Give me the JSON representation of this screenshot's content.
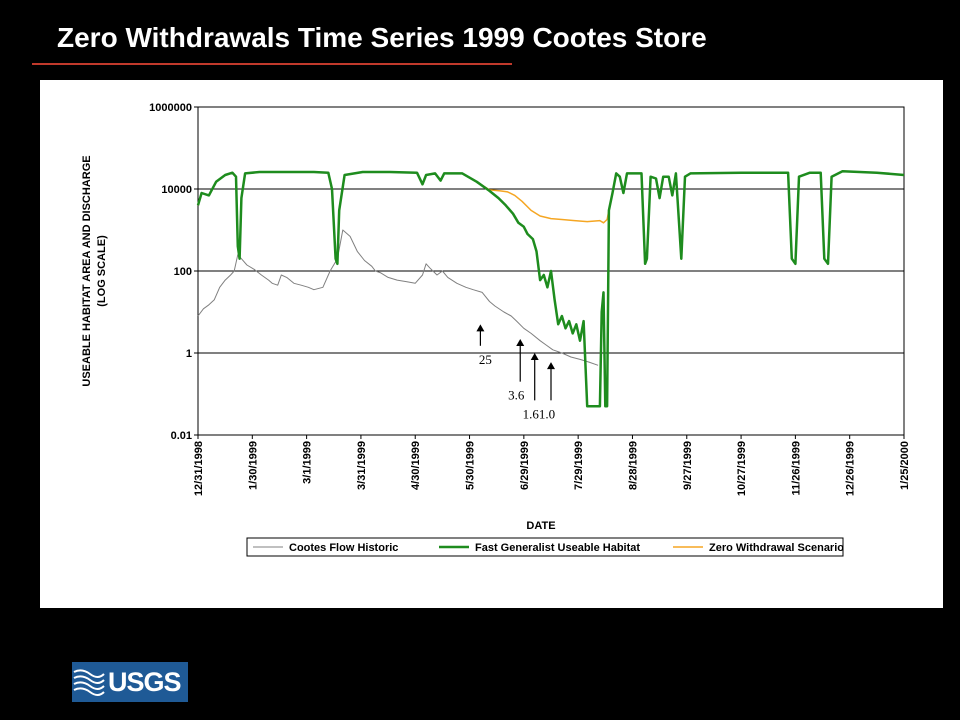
{
  "slide": {
    "title": "Zero Withdrawals Time Series 1999 Cootes Store",
    "logo_text": "USGS"
  },
  "colors": {
    "background": "#000000",
    "title": "#ffffff",
    "rule": "#c0392b",
    "historic": "#808080",
    "habitat": "#1e8c1e",
    "zero_withdrawal": "#f5a623",
    "logo_bg": "#1f5a96"
  },
  "chart_data": {
    "type": "line",
    "y_scale": "log",
    "ylabel_lines": [
      "USEABLE HABITAT AREA AND DISCHARGE",
      "(LOG SCALE)"
    ],
    "xlabel": "DATE",
    "ylim": [
      0.01,
      1000000
    ],
    "xlim": [
      "1998-12-31",
      "2000-01-25"
    ],
    "grid": "horizontal",
    "legend_position": "bottom",
    "y_ticks": [
      {
        "v": 0.01,
        "label": "0.01"
      },
      {
        "v": 1,
        "label": "1"
      },
      {
        "v": 100,
        "label": "100"
      },
      {
        "v": 10000,
        "label": "10000"
      },
      {
        "v": 1000000,
        "label": "1000000"
      }
    ],
    "x_ticks": [
      {
        "date": "1998-12-31",
        "label": "12/31/1998"
      },
      {
        "date": "1999-01-30",
        "label": "1/30/1999"
      },
      {
        "date": "1999-03-01",
        "label": "3/1/1999"
      },
      {
        "date": "1999-03-31",
        "label": "3/31/1999"
      },
      {
        "date": "1999-04-30",
        "label": "4/30/1999"
      },
      {
        "date": "1999-05-30",
        "label": "5/30/1999"
      },
      {
        "date": "1999-06-29",
        "label": "6/29/1999"
      },
      {
        "date": "1999-07-29",
        "label": "7/29/1999"
      },
      {
        "date": "1999-08-28",
        "label": "8/28/1999"
      },
      {
        "date": "1999-09-27",
        "label": "9/27/1999"
      },
      {
        "date": "1999-10-27",
        "label": "10/27/1999"
      },
      {
        "date": "1999-11-26",
        "label": "11/26/1999"
      },
      {
        "date": "1999-12-26",
        "label": "12/26/1999"
      },
      {
        "date": "2000-01-25",
        "label": "1/25/2000"
      }
    ],
    "series": [
      {
        "name": "Cootes Flow Historic",
        "color": "#808080",
        "width": 1,
        "points": [
          [
            "1998-12-31",
            8
          ],
          [
            "1999-01-03",
            12
          ],
          [
            "1999-01-06",
            15
          ],
          [
            "1999-01-09",
            20
          ],
          [
            "1999-01-12",
            40
          ],
          [
            "1999-01-15",
            60
          ],
          [
            "1999-01-18",
            80
          ],
          [
            "1999-01-20",
            100
          ],
          [
            "1999-01-22",
            250
          ],
          [
            "1999-01-24",
            200
          ],
          [
            "1999-01-27",
            140
          ],
          [
            "1999-01-31",
            110
          ],
          [
            "1999-02-04",
            80
          ],
          [
            "1999-02-08",
            60
          ],
          [
            "1999-02-10",
            50
          ],
          [
            "1999-02-13",
            45
          ],
          [
            "1999-02-15",
            80
          ],
          [
            "1999-02-18",
            70
          ],
          [
            "1999-02-22",
            50
          ],
          [
            "1999-02-26",
            45
          ],
          [
            "1999-03-02",
            40
          ],
          [
            "1999-03-05",
            35
          ],
          [
            "1999-03-10",
            40
          ],
          [
            "1999-03-14",
            100
          ],
          [
            "1999-03-18",
            200
          ],
          [
            "1999-03-21",
            1000
          ],
          [
            "1999-03-25",
            700
          ],
          [
            "1999-03-29",
            300
          ],
          [
            "1999-04-02",
            180
          ],
          [
            "1999-04-06",
            130
          ],
          [
            "1999-04-08",
            100
          ],
          [
            "1999-04-11",
            90
          ],
          [
            "1999-04-15",
            70
          ],
          [
            "1999-04-20",
            60
          ],
          [
            "1999-04-25",
            55
          ],
          [
            "1999-04-30",
            50
          ],
          [
            "1999-05-04",
            80
          ],
          [
            "1999-05-06",
            150
          ],
          [
            "1999-05-08",
            120
          ],
          [
            "1999-05-12",
            80
          ],
          [
            "1999-05-15",
            100
          ],
          [
            "1999-05-18",
            70
          ],
          [
            "1999-05-23",
            50
          ],
          [
            "1999-05-28",
            40
          ],
          [
            "1999-06-01",
            35
          ],
          [
            "1999-06-06",
            30
          ],
          [
            "1999-06-10",
            18
          ],
          [
            "1999-06-13",
            14
          ],
          [
            "1999-06-18",
            10
          ],
          [
            "1999-06-22",
            8
          ],
          [
            "1999-06-25",
            6
          ],
          [
            "1999-06-29",
            4
          ],
          [
            "1999-07-03",
            3
          ],
          [
            "1999-07-08",
            2
          ],
          [
            "1999-07-11",
            1.6
          ],
          [
            "1999-07-15",
            1.2
          ],
          [
            "1999-07-20",
            1
          ],
          [
            "1999-07-25",
            0.8
          ],
          [
            "1999-07-30",
            0.7
          ],
          [
            "1999-08-04",
            0.6
          ],
          [
            "1999-08-09",
            0.5
          ]
        ]
      },
      {
        "name": "Fast Generalist Useable Habitat",
        "color": "#1e8c1e",
        "width": 2.5,
        "points": [
          [
            "1998-12-31",
            4000
          ],
          [
            "1999-01-02",
            8000
          ],
          [
            "1999-01-06",
            7000
          ],
          [
            "1999-01-10",
            15000
          ],
          [
            "1999-01-15",
            22000
          ],
          [
            "1999-01-19",
            25000
          ],
          [
            "1999-01-21",
            20000
          ],
          [
            "1999-01-22",
            400
          ],
          [
            "1999-01-23",
            200
          ],
          [
            "1999-01-24",
            6000
          ],
          [
            "1999-01-26",
            24000
          ],
          [
            "1999-02-03",
            26000
          ],
          [
            "1999-02-13",
            26000
          ],
          [
            "1999-02-23",
            26000
          ],
          [
            "1999-03-05",
            26000
          ],
          [
            "1999-03-13",
            25000
          ],
          [
            "1999-03-15",
            10000
          ],
          [
            "1999-03-17",
            200
          ],
          [
            "1999-03-18",
            150
          ],
          [
            "1999-03-19",
            3000
          ],
          [
            "1999-03-22",
            22000
          ],
          [
            "1999-04-01",
            26000
          ],
          [
            "1999-04-16",
            26000
          ],
          [
            "1999-05-01",
            25000
          ],
          [
            "1999-05-04",
            13000
          ],
          [
            "1999-05-06",
            22000
          ],
          [
            "1999-05-11",
            24000
          ],
          [
            "1999-05-14",
            16000
          ],
          [
            "1999-05-16",
            24000
          ],
          [
            "1999-05-26",
            24000
          ],
          [
            "1999-06-03",
            15000
          ],
          [
            "1999-06-10",
            9000
          ],
          [
            "1999-06-15",
            6000
          ],
          [
            "1999-06-19",
            4000
          ],
          [
            "1999-06-23",
            2500
          ],
          [
            "1999-06-26",
            1500
          ],
          [
            "1999-06-29",
            1200
          ],
          [
            "1999-07-01",
            800
          ],
          [
            "1999-07-04",
            600
          ],
          [
            "1999-07-06",
            300
          ],
          [
            "1999-07-08",
            60
          ],
          [
            "1999-07-10",
            80
          ],
          [
            "1999-07-12",
            40
          ],
          [
            "1999-07-14",
            100
          ],
          [
            "1999-07-16",
            20
          ],
          [
            "1999-07-18",
            5
          ],
          [
            "1999-07-20",
            8
          ],
          [
            "1999-07-22",
            4
          ],
          [
            "1999-07-24",
            6
          ],
          [
            "1999-07-26",
            3
          ],
          [
            "1999-07-28",
            5
          ],
          [
            "1999-07-30",
            2
          ],
          [
            "1999-08-01",
            6
          ],
          [
            "1999-08-03",
            0.05
          ],
          [
            "1999-08-05",
            0.05
          ],
          [
            "1999-08-07",
            0.05
          ],
          [
            "1999-08-10",
            0.05
          ],
          [
            "1999-08-11",
            10
          ],
          [
            "1999-08-12",
            30
          ],
          [
            "1999-08-13",
            0.05
          ],
          [
            "1999-08-14",
            0.05
          ],
          [
            "1999-08-15",
            3000
          ],
          [
            "1999-08-17",
            8000
          ],
          [
            "1999-08-19",
            24000
          ],
          [
            "1999-08-21",
            20000
          ],
          [
            "1999-08-23",
            8000
          ],
          [
            "1999-08-25",
            24000
          ],
          [
            "1999-08-28",
            24000
          ],
          [
            "1999-09-02",
            24000
          ],
          [
            "1999-09-04",
            150
          ],
          [
            "1999-09-05",
            200
          ],
          [
            "1999-09-07",
            20000
          ],
          [
            "1999-09-10",
            18000
          ],
          [
            "1999-09-12",
            6000
          ],
          [
            "1999-09-14",
            20000
          ],
          [
            "1999-09-17",
            20000
          ],
          [
            "1999-09-19",
            7000
          ],
          [
            "1999-09-21",
            24000
          ],
          [
            "1999-09-24",
            200
          ],
          [
            "1999-09-26",
            20000
          ],
          [
            "1999-09-29",
            24000
          ],
          [
            "1999-10-27",
            25000
          ],
          [
            "1999-11-22",
            25000
          ],
          [
            "1999-11-24",
            200
          ],
          [
            "1999-11-26",
            150
          ],
          [
            "1999-11-28",
            20000
          ],
          [
            "1999-12-04",
            25000
          ],
          [
            "1999-12-10",
            25000
          ],
          [
            "1999-12-12",
            200
          ],
          [
            "1999-12-14",
            150
          ],
          [
            "1999-12-16",
            20000
          ],
          [
            "1999-12-22",
            27000
          ],
          [
            "2000-01-10",
            25000
          ],
          [
            "2000-01-25",
            22000
          ]
        ]
      },
      {
        "name": "Zero Withdrawal Scenario",
        "color": "#f5a623",
        "width": 1.5,
        "points": [
          [
            "1998-12-31",
            4000
          ],
          [
            "1999-01-02",
            8000
          ],
          [
            "1999-01-06",
            7000
          ],
          [
            "1999-01-10",
            15000
          ],
          [
            "1999-01-15",
            22000
          ],
          [
            "1999-01-19",
            25000
          ],
          [
            "1999-01-21",
            20000
          ],
          [
            "1999-01-22",
            400
          ],
          [
            "1999-01-23",
            200
          ],
          [
            "1999-01-24",
            6000
          ],
          [
            "1999-01-26",
            24000
          ],
          [
            "1999-02-03",
            26000
          ],
          [
            "1999-02-13",
            26000
          ],
          [
            "1999-02-23",
            26000
          ],
          [
            "1999-03-05",
            26000
          ],
          [
            "1999-03-13",
            25000
          ],
          [
            "1999-03-15",
            10000
          ],
          [
            "1999-03-17",
            200
          ],
          [
            "1999-03-18",
            150
          ],
          [
            "1999-03-19",
            3000
          ],
          [
            "1999-03-22",
            22000
          ],
          [
            "1999-04-01",
            26000
          ],
          [
            "1999-04-16",
            26000
          ],
          [
            "1999-05-01",
            25000
          ],
          [
            "1999-05-04",
            13000
          ],
          [
            "1999-05-06",
            22000
          ],
          [
            "1999-05-11",
            24000
          ],
          [
            "1999-05-14",
            16000
          ],
          [
            "1999-05-16",
            24000
          ],
          [
            "1999-05-26",
            24000
          ],
          [
            "1999-06-03",
            15000
          ],
          [
            "1999-06-10",
            9500
          ],
          [
            "1999-06-16",
            9000
          ],
          [
            "1999-06-20",
            8500
          ],
          [
            "1999-06-24",
            7000
          ],
          [
            "1999-06-28",
            5000
          ],
          [
            "1999-07-03",
            3000
          ],
          [
            "1999-07-08",
            2200
          ],
          [
            "1999-07-14",
            1900
          ],
          [
            "1999-07-20",
            1800
          ],
          [
            "1999-07-27",
            1700
          ],
          [
            "1999-08-03",
            1600
          ],
          [
            "1999-08-10",
            1700
          ],
          [
            "1999-08-12",
            1500
          ],
          [
            "1999-08-14",
            1800
          ],
          [
            "1999-08-15",
            3000
          ],
          [
            "1999-08-17",
            8000
          ],
          [
            "1999-08-19",
            24000
          ],
          [
            "1999-08-21",
            20000
          ],
          [
            "1999-08-23",
            8000
          ],
          [
            "1999-08-25",
            24000
          ],
          [
            "1999-08-28",
            24000
          ],
          [
            "1999-09-02",
            24000
          ],
          [
            "1999-09-04",
            150
          ],
          [
            "1999-09-05",
            200
          ],
          [
            "1999-09-07",
            20000
          ],
          [
            "1999-09-10",
            18000
          ],
          [
            "1999-09-12",
            6000
          ],
          [
            "1999-09-14",
            20000
          ],
          [
            "1999-09-17",
            20000
          ],
          [
            "1999-09-19",
            7000
          ],
          [
            "1999-09-21",
            24000
          ],
          [
            "1999-09-24",
            200
          ],
          [
            "1999-09-26",
            20000
          ],
          [
            "1999-09-29",
            24000
          ],
          [
            "1999-10-27",
            25000
          ],
          [
            "1999-11-22",
            25000
          ],
          [
            "1999-11-24",
            200
          ],
          [
            "1999-11-26",
            150
          ],
          [
            "1999-11-28",
            20000
          ],
          [
            "1999-12-04",
            25000
          ],
          [
            "1999-12-10",
            25000
          ],
          [
            "1999-12-12",
            200
          ],
          [
            "1999-12-14",
            150
          ],
          [
            "1999-12-16",
            20000
          ],
          [
            "1999-12-22",
            27000
          ],
          [
            "2000-01-10",
            25000
          ],
          [
            "2000-01-25",
            22000
          ]
        ]
      }
    ],
    "annotations": [
      {
        "label": "25",
        "date": "1999-06-05",
        "arrow_from": 1.5,
        "arrow_to": 5
      },
      {
        "label": "3.6",
        "date": "1999-06-27",
        "arrow_from": 0.2,
        "arrow_to": 2.2
      },
      {
        "label": "1.6",
        "date": "1999-07-05",
        "arrow_from": 0.07,
        "arrow_to": 1
      },
      {
        "label": "1.0",
        "date": "1999-07-14",
        "arrow_from": 0.07,
        "arrow_to": 0.6
      }
    ]
  }
}
